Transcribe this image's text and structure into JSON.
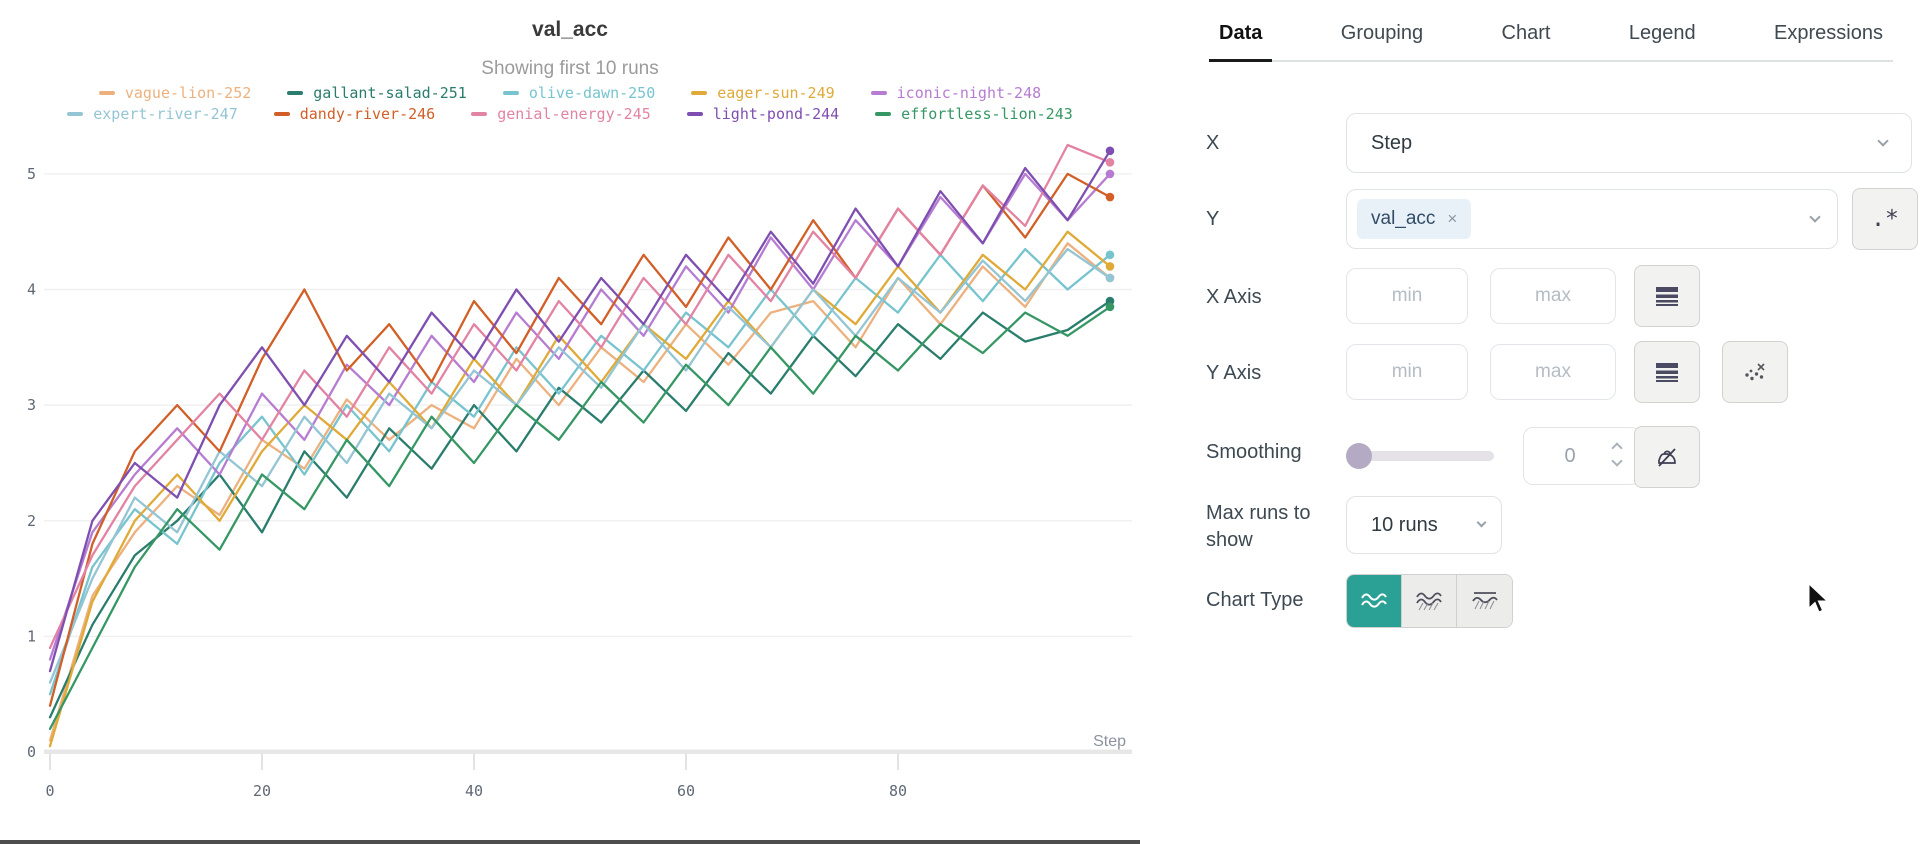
{
  "chart_data": {
    "type": "line",
    "title": "val_acc",
    "subtitle": "Showing first 10 runs",
    "xlabel": "Step",
    "xlim": [
      0,
      100
    ],
    "ylim": [
      0,
      5.25
    ],
    "xticks": [
      0,
      20,
      40,
      60,
      80
    ],
    "yticks": [
      0,
      1,
      2,
      3,
      4,
      5
    ],
    "grid": "horizontal",
    "legend_position": "top",
    "x": [
      0,
      4,
      8,
      12,
      16,
      20,
      24,
      28,
      32,
      36,
      40,
      44,
      48,
      52,
      56,
      60,
      64,
      68,
      72,
      76,
      80,
      84,
      88,
      92,
      96,
      100
    ],
    "series": [
      {
        "name": "vague-lion-252",
        "color": "#ecb17e",
        "values": [
          0.1,
          1.35,
          1.9,
          2.3,
          2.05,
          2.7,
          2.45,
          3.05,
          2.7,
          3.0,
          2.8,
          3.4,
          3.0,
          3.5,
          3.2,
          3.7,
          3.35,
          3.8,
          3.9,
          3.5,
          4.1,
          3.7,
          4.2,
          3.85,
          4.4,
          4.1
        ]
      },
      {
        "name": "gallant-salad-251",
        "color": "#2a7d6d",
        "values": [
          0.3,
          1.1,
          1.7,
          2.0,
          2.4,
          1.9,
          2.6,
          2.2,
          2.8,
          2.45,
          3.0,
          2.6,
          3.15,
          2.85,
          3.3,
          2.95,
          3.45,
          3.1,
          3.6,
          3.25,
          3.7,
          3.4,
          3.8,
          3.55,
          3.65,
          3.9
        ]
      },
      {
        "name": "olive-dawn-250",
        "color": "#77c4cf",
        "values": [
          0.5,
          1.6,
          2.1,
          1.8,
          2.5,
          2.9,
          2.4,
          3.0,
          2.6,
          3.2,
          2.9,
          3.5,
          3.1,
          3.6,
          3.3,
          3.8,
          3.5,
          4.0,
          3.6,
          4.1,
          3.8,
          4.3,
          3.9,
          4.35,
          4.0,
          4.3
        ]
      },
      {
        "name": "eager-sun-249",
        "color": "#dfaa38",
        "values": [
          0.05,
          1.3,
          2.0,
          2.4,
          2.0,
          2.6,
          3.0,
          2.7,
          3.2,
          2.8,
          3.4,
          3.0,
          3.6,
          3.2,
          3.7,
          3.4,
          3.9,
          3.5,
          4.0,
          3.7,
          4.2,
          3.8,
          4.3,
          4.0,
          4.5,
          4.2
        ]
      },
      {
        "name": "iconic-night-248",
        "color": "#b67cd2",
        "values": [
          0.8,
          1.9,
          2.4,
          2.8,
          2.4,
          3.1,
          2.7,
          3.35,
          3.0,
          3.6,
          3.2,
          3.8,
          3.4,
          4.0,
          3.6,
          4.2,
          3.8,
          4.45,
          4.0,
          4.6,
          4.2,
          4.8,
          4.4,
          5.0,
          4.6,
          5.0
        ]
      },
      {
        "name": "expert-river-247",
        "color": "#94c5d4",
        "values": [
          0.6,
          1.5,
          2.2,
          1.9,
          2.6,
          2.3,
          2.9,
          2.5,
          3.1,
          2.8,
          3.3,
          3.0,
          3.5,
          3.15,
          3.7,
          3.3,
          3.85,
          3.5,
          4.0,
          3.6,
          4.1,
          3.8,
          4.25,
          3.9,
          4.35,
          4.1
        ]
      },
      {
        "name": "dandy-river-246",
        "color": "#d15f27",
        "values": [
          0.4,
          1.8,
          2.6,
          3.0,
          2.6,
          3.4,
          4.0,
          3.3,
          3.7,
          3.2,
          3.9,
          3.45,
          4.1,
          3.7,
          4.3,
          3.85,
          4.45,
          4.0,
          4.6,
          4.1,
          4.7,
          4.3,
          4.9,
          4.45,
          5.0,
          4.8
        ]
      },
      {
        "name": "genial-energy-245",
        "color": "#e283a4",
        "values": [
          0.9,
          1.7,
          2.3,
          2.7,
          3.1,
          2.7,
          3.3,
          2.9,
          3.5,
          3.1,
          3.7,
          3.3,
          3.9,
          3.5,
          4.1,
          3.7,
          4.3,
          3.9,
          4.5,
          4.1,
          4.7,
          4.3,
          4.9,
          4.55,
          5.25,
          5.1
        ]
      },
      {
        "name": "light-pond-244",
        "color": "#7e4fb0",
        "values": [
          0.7,
          2.0,
          2.5,
          2.2,
          3.0,
          3.5,
          3.0,
          3.6,
          3.2,
          3.8,
          3.4,
          4.0,
          3.55,
          4.1,
          3.7,
          4.3,
          3.9,
          4.5,
          4.05,
          4.7,
          4.2,
          4.85,
          4.4,
          5.05,
          4.6,
          5.2
        ]
      },
      {
        "name": "effortless-lion-243",
        "color": "#379764",
        "values": [
          0.2,
          0.9,
          1.6,
          2.1,
          1.75,
          2.4,
          2.1,
          2.7,
          2.3,
          2.9,
          2.5,
          3.0,
          2.7,
          3.2,
          2.85,
          3.35,
          3.0,
          3.5,
          3.1,
          3.6,
          3.3,
          3.7,
          3.45,
          3.8,
          3.6,
          3.85
        ]
      }
    ]
  },
  "panel": {
    "tabs": [
      {
        "label": "Data",
        "active": true
      },
      {
        "label": "Grouping",
        "active": false
      },
      {
        "label": "Chart",
        "active": false
      },
      {
        "label": "Legend",
        "active": false
      },
      {
        "label": "Expressions",
        "active": false
      }
    ],
    "rows": {
      "x": {
        "label": "X",
        "value": "Step"
      },
      "y": {
        "label": "Y",
        "chip": "val_acc",
        "chip_remove": "×",
        "regex": ".*"
      },
      "x_axis": {
        "label": "X Axis",
        "min_placeholder": "min",
        "max_placeholder": "max"
      },
      "y_axis": {
        "label": "Y Axis",
        "min_placeholder": "min",
        "max_placeholder": "max"
      },
      "smoothing": {
        "label": "Smoothing",
        "value": "0"
      },
      "max_runs": {
        "label": "Max runs to show",
        "value": "10 runs"
      },
      "chart_type": {
        "label": "Chart Type"
      }
    }
  },
  "colors": {
    "accent_teal": "#2aa194",
    "tab_underline": "#1a1a1a",
    "chip_bg": "#e9f1f8",
    "axis_bar": "#e7e7e7",
    "gridline": "#f0f0f0",
    "tick_text": "#5f6876",
    "step_label": "#8b93a0",
    "slider_knob": "#b5aac4"
  }
}
